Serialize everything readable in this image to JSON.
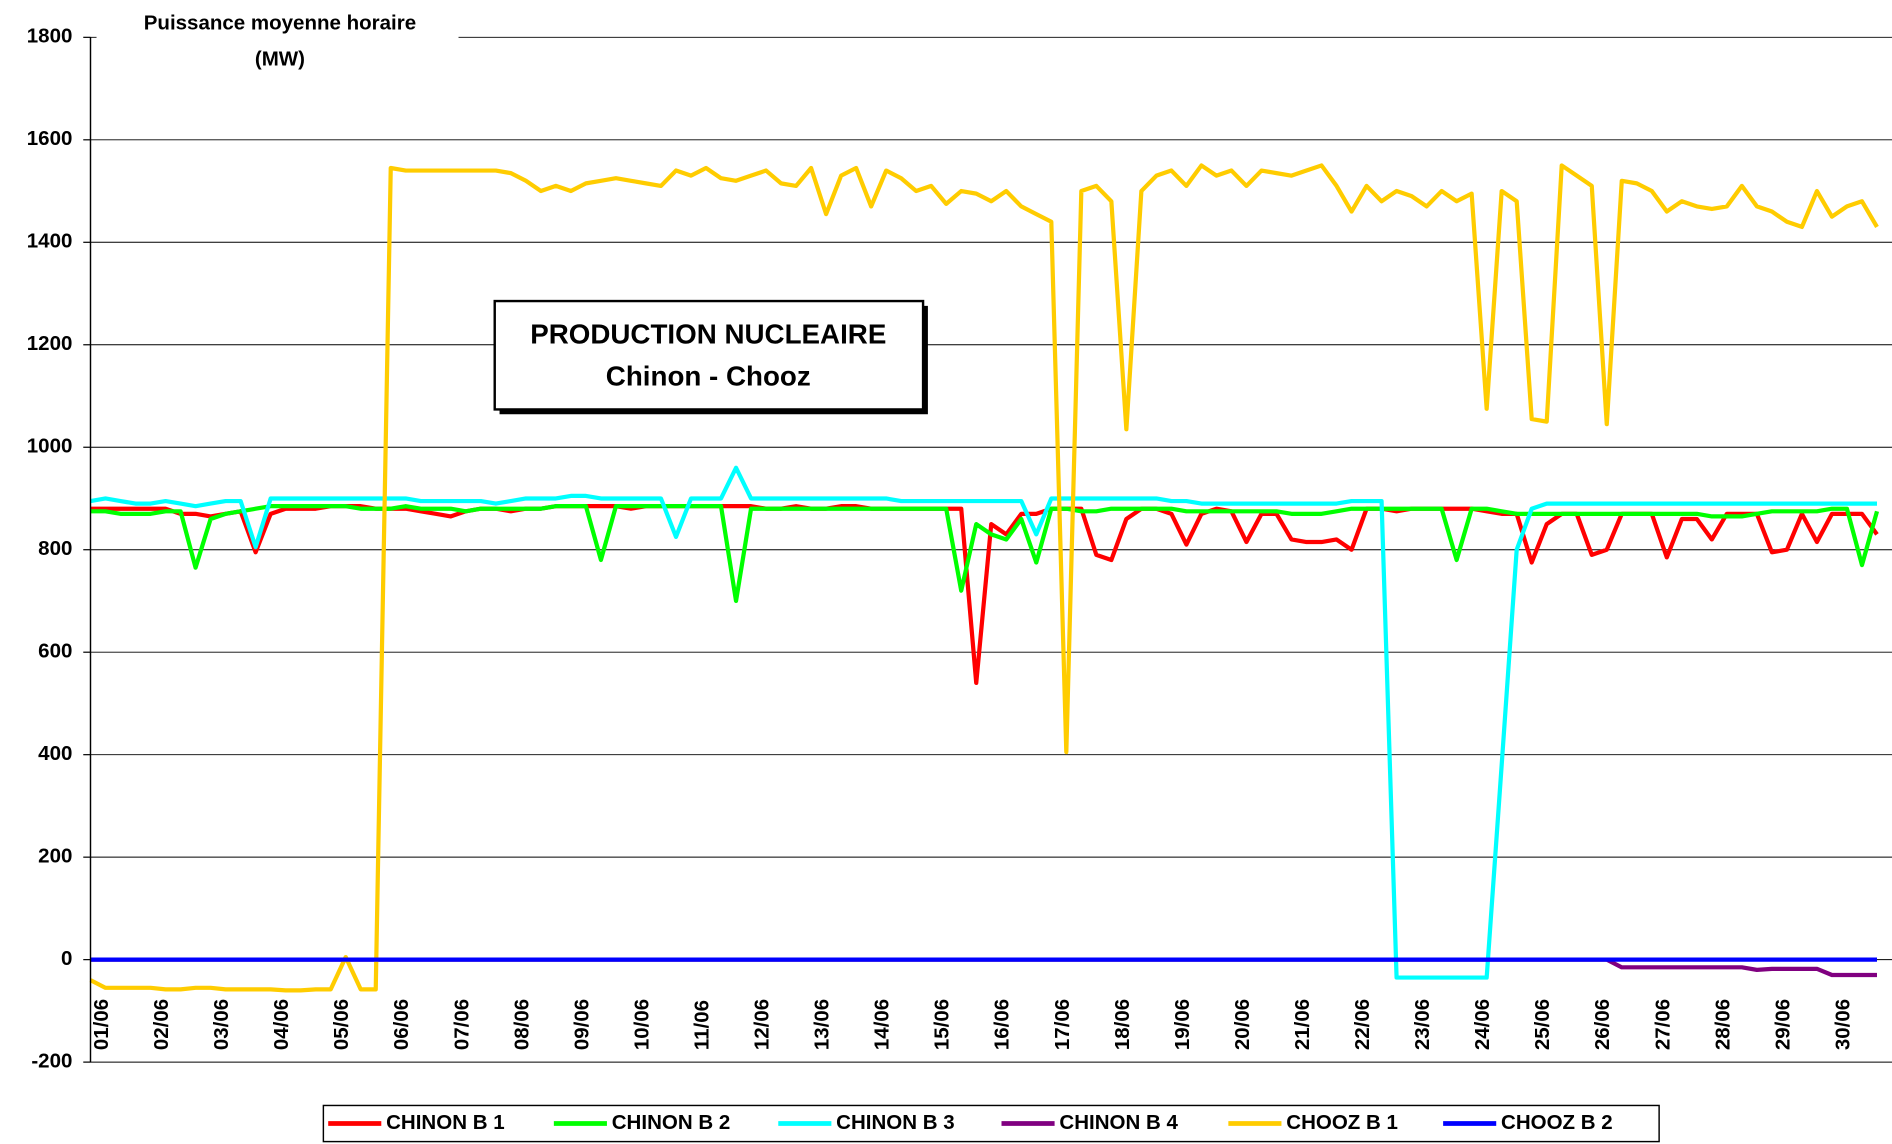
{
  "chart_data": {
    "type": "line",
    "title": "PRODUCTION NUCLEAIRE",
    "subtitle": "Chinon - Chooz",
    "y_label": [
      "Puissance moyenne horaire",
      "(MW)"
    ],
    "categories": [
      "01/06",
      null,
      null,
      null,
      "02/06",
      null,
      null,
      null,
      "03/06",
      null,
      null,
      null,
      "04/06",
      null,
      null,
      null,
      "05/06",
      null,
      null,
      null,
      "06/06",
      null,
      null,
      null,
      "07/06",
      null,
      null,
      null,
      "08/06",
      null,
      null,
      null,
      "09/06",
      null,
      null,
      null,
      "10/06",
      null,
      null,
      null,
      "11/06",
      null,
      null,
      null,
      "12/06",
      null,
      null,
      null,
      "13/06",
      null,
      null,
      null,
      "14/06",
      null,
      null,
      null,
      "15/06",
      null,
      null,
      null,
      "16/06",
      null,
      null,
      null,
      "17/06",
      null,
      null,
      null,
      "18/06",
      null,
      null,
      null,
      "19/06",
      null,
      null,
      null,
      "20/06",
      null,
      null,
      null,
      "21/06",
      null,
      null,
      null,
      "22/06",
      null,
      null,
      null,
      "23/06",
      null,
      null,
      null,
      "24/06",
      null,
      null,
      null,
      "25/06",
      null,
      null,
      null,
      "26/06",
      null,
      null,
      null,
      "27/06",
      null,
      null,
      null,
      "28/06",
      null,
      null,
      null,
      "29/06",
      null,
      null,
      null,
      "30/06",
      null,
      null,
      null
    ],
    "ylim": [
      -200,
      1800
    ],
    "yticks": [
      -200,
      0,
      200,
      400,
      600,
      800,
      1000,
      1200,
      1400,
      1600,
      1800
    ],
    "grid": true,
    "legend": "bottom",
    "series": [
      {
        "name": "CHINON B 1",
        "color": "#ff0000",
        "values": [
          880,
          880,
          880,
          880,
          880,
          880,
          870,
          870,
          865,
          870,
          875,
          795,
          870,
          880,
          880,
          880,
          885,
          885,
          885,
          880,
          880,
          880,
          875,
          870,
          865,
          875,
          880,
          880,
          875,
          880,
          880,
          885,
          885,
          885,
          885,
          885,
          880,
          885,
          885,
          885,
          885,
          885,
          885,
          885,
          885,
          880,
          880,
          885,
          880,
          880,
          885,
          885,
          880,
          880,
          880,
          880,
          880,
          880,
          880,
          540,
          850,
          830,
          870,
          870,
          880,
          880,
          880,
          790,
          780,
          860,
          880,
          880,
          870,
          810,
          870,
          880,
          875,
          815,
          870,
          870,
          820,
          815,
          815,
          820,
          800,
          880,
          880,
          875,
          880,
          880,
          880,
          880,
          880,
          875,
          870,
          870,
          775,
          850,
          870,
          870,
          790,
          800,
          870,
          870,
          870,
          785,
          860,
          860,
          820,
          870,
          870,
          870,
          795,
          800,
          870,
          815,
          870,
          870,
          870,
          830
        ]
      },
      {
        "name": "CHINON B 2",
        "color": "#00ff00",
        "values": [
          875,
          875,
          870,
          870,
          870,
          875,
          875,
          765,
          860,
          870,
          875,
          880,
          885,
          885,
          885,
          885,
          885,
          885,
          880,
          880,
          880,
          885,
          880,
          880,
          880,
          875,
          880,
          880,
          880,
          880,
          880,
          885,
          885,
          885,
          780,
          885,
          885,
          885,
          885,
          885,
          885,
          885,
          885,
          700,
          880,
          880,
          880,
          880,
          880,
          880,
          880,
          880,
          880,
          880,
          880,
          880,
          880,
          880,
          720,
          850,
          830,
          820,
          860,
          775,
          880,
          880,
          875,
          875,
          880,
          880,
          880,
          880,
          880,
          875,
          875,
          875,
          875,
          875,
          875,
          875,
          870,
          870,
          870,
          875,
          880,
          880,
          880,
          880,
          880,
          880,
          880,
          780,
          880,
          880,
          875,
          870,
          870,
          870,
          870,
          870,
          870,
          870,
          870,
          870,
          870,
          870,
          870,
          870,
          865,
          865,
          865,
          870,
          875,
          875,
          875,
          875,
          880,
          880,
          770,
          875
        ]
      },
      {
        "name": "CHINON B 3",
        "color": "#00ffff",
        "values": [
          895,
          900,
          895,
          890,
          890,
          895,
          890,
          885,
          890,
          895,
          895,
          805,
          900,
          900,
          900,
          900,
          900,
          900,
          900,
          900,
          900,
          900,
          895,
          895,
          895,
          895,
          895,
          890,
          895,
          900,
          900,
          900,
          905,
          905,
          900,
          900,
          900,
          900,
          900,
          825,
          900,
          900,
          900,
          960,
          900,
          900,
          900,
          900,
          900,
          900,
          900,
          900,
          900,
          900,
          895,
          895,
          895,
          895,
          895,
          895,
          895,
          895,
          895,
          830,
          900,
          900,
          900,
          900,
          900,
          900,
          900,
          900,
          895,
          895,
          890,
          890,
          890,
          890,
          890,
          890,
          890,
          890,
          890,
          890,
          895,
          895,
          895,
          -35,
          -35,
          -35,
          -35,
          -35,
          -35,
          -35,
          380,
          800,
          880,
          890,
          890,
          890,
          890,
          890,
          890,
          890,
          890,
          890,
          890,
          890,
          890,
          890,
          890,
          890,
          890,
          890,
          890,
          890,
          890,
          890,
          890,
          890
        ]
      },
      {
        "name": "CHINON B 4",
        "color": "#800080",
        "values": [
          0,
          0,
          0,
          0,
          0,
          0,
          0,
          0,
          0,
          0,
          0,
          0,
          0,
          0,
          0,
          0,
          0,
          0,
          0,
          0,
          0,
          0,
          0,
          0,
          0,
          0,
          0,
          0,
          0,
          0,
          0,
          0,
          0,
          0,
          0,
          0,
          0,
          0,
          0,
          0,
          0,
          0,
          0,
          0,
          0,
          0,
          0,
          0,
          0,
          0,
          0,
          0,
          0,
          0,
          0,
          0,
          0,
          0,
          0,
          0,
          0,
          0,
          0,
          0,
          0,
          0,
          0,
          0,
          0,
          0,
          0,
          0,
          0,
          0,
          0,
          0,
          0,
          0,
          0,
          0,
          0,
          0,
          0,
          0,
          0,
          0,
          0,
          0,
          0,
          0,
          0,
          0,
          0,
          0,
          0,
          0,
          0,
          0,
          0,
          0,
          0,
          0,
          -15,
          -15,
          -15,
          -15,
          -15,
          -15,
          -15,
          -15,
          -15,
          -20,
          -18,
          -18,
          -18,
          -18,
          -30,
          -30,
          -30,
          -30
        ]
      },
      {
        "name": "CHOOZ B 1",
        "color": "#ffcc00",
        "values": [
          -40,
          -55,
          -55,
          -55,
          -55,
          -58,
          -58,
          -55,
          -55,
          -58,
          -58,
          -58,
          -58,
          -60,
          -60,
          -58,
          -58,
          5,
          -58,
          -58,
          1545,
          1540,
          1540,
          1540,
          1540,
          1540,
          1540,
          1540,
          1535,
          1520,
          1500,
          1510,
          1500,
          1515,
          1520,
          1525,
          1520,
          1515,
          1510,
          1540,
          1530,
          1545,
          1525,
          1520,
          1530,
          1540,
          1515,
          1510,
          1545,
          1455,
          1530,
          1545,
          1470,
          1540,
          1525,
          1500,
          1510,
          1475,
          1500,
          1495,
          1480,
          1500,
          1470,
          1455,
          1440,
          405,
          1500,
          1510,
          1480,
          1035,
          1500,
          1530,
          1540,
          1510,
          1550,
          1530,
          1540,
          1510,
          1540,
          1535,
          1530,
          1540,
          1550,
          1510,
          1460,
          1510,
          1480,
          1500,
          1490,
          1470,
          1500,
          1480,
          1495,
          1075,
          1500,
          1480,
          1055,
          1050,
          1550,
          1530,
          1510,
          1045,
          1520,
          1515,
          1500,
          1460,
          1480,
          1470,
          1465,
          1470,
          1510,
          1470,
          1460,
          1440,
          1430,
          1500,
          1450,
          1470,
          1480,
          1430
        ]
      },
      {
        "name": "CHOOZ B 2",
        "color": "#0000ff",
        "values": [
          0,
          0,
          0,
          0,
          0,
          0,
          0,
          0,
          0,
          0,
          0,
          0,
          0,
          0,
          0,
          0,
          0,
          0,
          0,
          0,
          0,
          0,
          0,
          0,
          0,
          0,
          0,
          0,
          0,
          0,
          0,
          0,
          0,
          0,
          0,
          0,
          0,
          0,
          0,
          0,
          0,
          0,
          0,
          0,
          0,
          0,
          0,
          0,
          0,
          0,
          0,
          0,
          0,
          0,
          0,
          0,
          0,
          0,
          0,
          0,
          0,
          0,
          0,
          0,
          0,
          0,
          0,
          0,
          0,
          0,
          0,
          0,
          0,
          0,
          0,
          0,
          0,
          0,
          0,
          0,
          0,
          0,
          0,
          0,
          0,
          0,
          0,
          0,
          0,
          0,
          0,
          0,
          0,
          0,
          0,
          0,
          0,
          0,
          0,
          0,
          0,
          0,
          0,
          0,
          0,
          0,
          0,
          0,
          0,
          0,
          0,
          0,
          0,
          0,
          0,
          0,
          0,
          0,
          0,
          0
        ]
      }
    ]
  }
}
